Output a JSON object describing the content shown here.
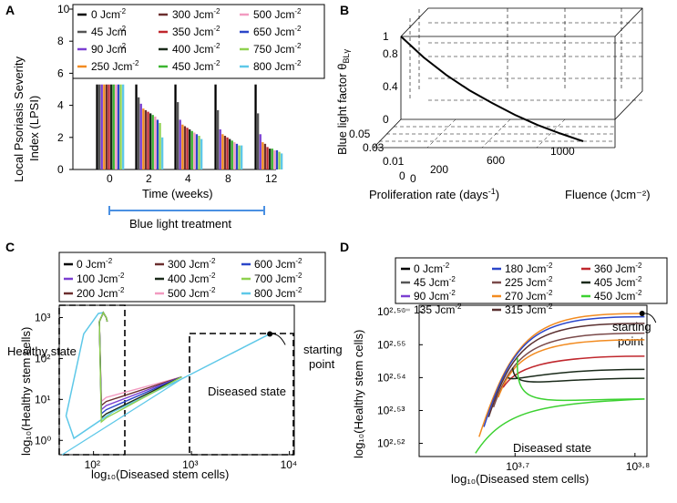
{
  "chart_data": [
    {
      "panel": "A",
      "type": "bar",
      "ylabel_line1": "Local Psoriasis  Severity",
      "ylabel_line2": "Index (LPSI)",
      "xlabel": "Time (weeks)",
      "categories": [
        "0",
        "2",
        "4",
        "8",
        "12"
      ],
      "yticks": [
        "0",
        "2",
        "4",
        "6",
        "8",
        "10"
      ],
      "ylim": [
        0,
        10.5
      ],
      "treatment_label": "Blue light treatment",
      "series": [
        {
          "name": "0",
          "unit": "Jcm",
          "color": "#000000",
          "values": [
            5.3,
            5.3,
            5.3,
            5.3,
            5.3
          ]
        },
        {
          "name": "45",
          "unit": "Jcm",
          "color": "#555555",
          "values": [
            5.3,
            4.5,
            4.2,
            3.7,
            3.5
          ]
        },
        {
          "name": "90",
          "unit": "Jcm",
          "color": "#7b3fd1",
          "values": [
            5.3,
            4.1,
            3.1,
            2.5,
            2.2
          ]
        },
        {
          "name": "250 Jcm",
          "color": "#f28b20",
          "values": [
            5.3,
            3.8,
            2.8,
            2.2,
            1.7
          ]
        },
        {
          "name": "300 Jcm",
          "color": "#6b2e2e",
          "values": [
            5.3,
            3.7,
            2.7,
            2.1,
            1.6
          ]
        },
        {
          "name": "350 Jcm",
          "color": "#c0272d",
          "values": [
            5.3,
            3.6,
            2.6,
            2.0,
            1.4
          ]
        },
        {
          "name": "400 Jcm",
          "color": "#1a2a1a",
          "values": [
            5.3,
            3.5,
            2.5,
            1.9,
            1.3
          ]
        },
        {
          "name": "450 Jcm",
          "color": "#3cb531",
          "values": [
            5.3,
            3.4,
            2.4,
            1.8,
            1.3
          ]
        },
        {
          "name": "500 Jcm",
          "color": "#f29bc0",
          "values": [
            5.3,
            3.3,
            2.3,
            1.7,
            1.2
          ]
        },
        {
          "name": "650 Jcm",
          "color": "#2b46c9",
          "values": [
            5.3,
            3.1,
            2.2,
            1.6,
            1.2
          ]
        },
        {
          "name": "750 Jcm",
          "color": "#8fd14f",
          "values": [
            5.3,
            2.9,
            2.1,
            1.5,
            1.1
          ]
        },
        {
          "name": "800 Jcm",
          "color": "#5ec8e8",
          "values": [
            5.3,
            2.0,
            1.9,
            1.5,
            1.0
          ]
        }
      ]
    },
    {
      "panel": "B",
      "type": "line",
      "zlabel": "Blue light factor θ",
      "zlabel_sub": "BLγ",
      "xlabel": "Proliferation rate (days",
      "xlabel_sup": "-1",
      "xlabel_tail": ")",
      "ylabel": "Fluence (Jcm⁻²)",
      "zticks": [
        "0",
        "0.4",
        "0.8",
        "1"
      ],
      "rate_ticks": [
        "0.05",
        "0.03",
        "0.01",
        "0"
      ],
      "fluence_ticks": [
        "0",
        "200",
        "600",
        "1000"
      ],
      "curve": {
        "fluence": [
          0,
          100,
          200,
          300,
          400,
          500,
          600,
          700,
          800
        ],
        "theta": [
          1.0,
          0.78,
          0.6,
          0.45,
          0.33,
          0.22,
          0.13,
          0.06,
          0.0
        ]
      }
    },
    {
      "panel": "C",
      "type": "line",
      "xlabel": "log₁₀(Diseased stem cells)",
      "ylabel": "log₁₀(Healthy stem cells)",
      "xticks": [
        "10²",
        "10³",
        "10⁴"
      ],
      "yticks": [
        "10⁰",
        "10¹",
        "10²",
        "10³"
      ],
      "xlim_log10": [
        1.65,
        4.05
      ],
      "ylim_log10": [
        -0.35,
        3.3
      ],
      "annotations": {
        "healthy": "Healthy state",
        "diseased": "Diseased state",
        "start_line1": "starting",
        "start_line2": "point"
      },
      "start_point": {
        "x_log10": 3.8,
        "y_log10": 2.6
      },
      "legend": [
        {
          "value": "0",
          "color": "#000000"
        },
        {
          "value": "300",
          "color": "#6b2e2e"
        },
        {
          "value": "600",
          "color": "#2b46c9"
        },
        {
          "value": "100",
          "color": "#7b3fd1"
        },
        {
          "value": "400",
          "color": "#1a2a1a"
        },
        {
          "value": "700",
          "color": "#8fd14f"
        },
        {
          "value": "200",
          "color": "#6b2e2e"
        },
        {
          "value": "500",
          "color": "#f29bc0"
        },
        {
          "value": "800",
          "color": "#5ec8e8"
        }
      ],
      "unit_label": "Jcm",
      "unit_exp": "-2"
    },
    {
      "panel": "D",
      "type": "line",
      "xlabel": "log₁₀(Diseased stem cells)",
      "ylabel": "log₁₀(Healthy stem cells)",
      "xticks": [
        "10³·⁷",
        "10³·⁸"
      ],
      "yticks": [
        "10²·⁵²",
        "10²·⁵³",
        "10²·⁵⁴",
        "10²·⁵⁵",
        "10²·⁵⁶"
      ],
      "xlim_log10": [
        3.62,
        3.81
      ],
      "ylim_log10": [
        2.516,
        2.562
      ],
      "annotations": {
        "diseased": "Diseased state",
        "start_line1": "starting",
        "start_line2": "point"
      },
      "legend": [
        {
          "value": "0",
          "color": "#000000"
        },
        {
          "value": "180",
          "color": "#2b46c9"
        },
        {
          "value": "360",
          "color": "#c0272d"
        },
        {
          "value": "45",
          "color": "#555555"
        },
        {
          "value": "225",
          "color": "#7a4a4a"
        },
        {
          "value": "405",
          "color": "#1a2a1a"
        },
        {
          "value": "90",
          "color": "#7b3fd1"
        },
        {
          "value": "270",
          "color": "#f28b20"
        },
        {
          "value": "450",
          "color": "#3cd131"
        },
        {
          "value": "135",
          "color": "#bbbbbb"
        },
        {
          "value": "315",
          "color": "#5a3030"
        }
      ],
      "plateaus": [
        2.5595,
        2.5585,
        2.5565,
        2.5535,
        2.5515,
        2.5465,
        2.5425,
        2.5398,
        2.5335
      ],
      "unit_label": "Jcm",
      "unit_exp": "-2"
    }
  ]
}
